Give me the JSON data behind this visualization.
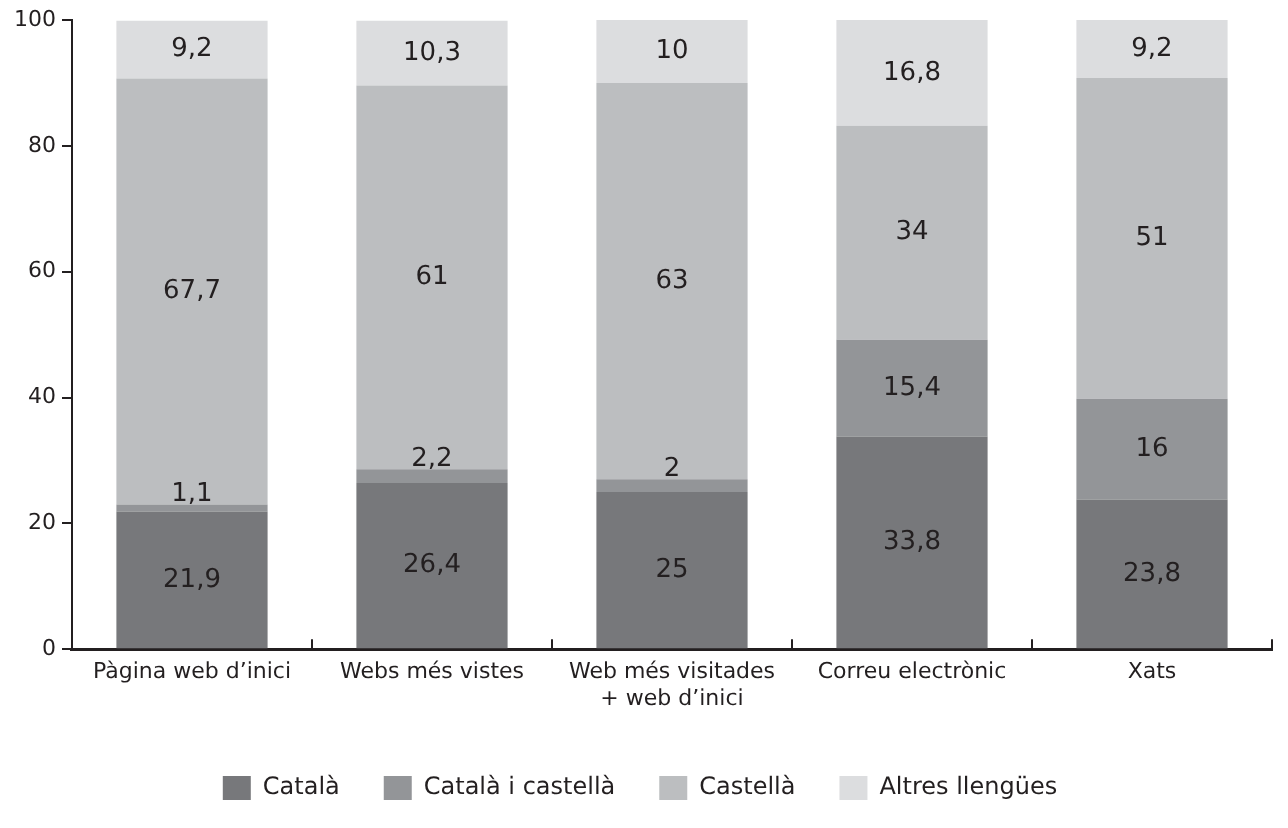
{
  "chart_data": {
    "type": "bar",
    "stacked": true,
    "categories": [
      "Pàgina web d’inici",
      "Webs més vistes",
      "Web més visitades\n+ web d’inici",
      "Correu electrònic",
      "Xats"
    ],
    "series": [
      {
        "name": "Català",
        "color": "#77787b",
        "values": [
          21.9,
          26.4,
          25,
          33.8,
          23.8
        ],
        "value_labels": [
          "21,9",
          "26,4",
          "25",
          "33,8",
          "23,8"
        ]
      },
      {
        "name": "Català i castellà",
        "color": "#939598",
        "values": [
          1.1,
          2.2,
          2,
          15.4,
          16
        ],
        "value_labels": [
          "1,1",
          "2,2",
          "2",
          "15,4",
          "16"
        ]
      },
      {
        "name": "Castellà",
        "color": "#bcbec0",
        "values": [
          67.7,
          61,
          63,
          34,
          51
        ],
        "value_labels": [
          "67,7",
          "61",
          "63",
          "34",
          "51"
        ]
      },
      {
        "name": "Altres llengües",
        "color": "#dcdddf",
        "values": [
          9.2,
          10.3,
          10,
          16.8,
          9.2
        ],
        "value_labels": [
          "9,2",
          "10,3",
          "10",
          "16,8",
          "9,2"
        ]
      }
    ],
    "ylim": [
      0,
      100
    ],
    "yticks": [
      0,
      20,
      40,
      60,
      80,
      100
    ],
    "grid": false,
    "legend": "bottom"
  }
}
